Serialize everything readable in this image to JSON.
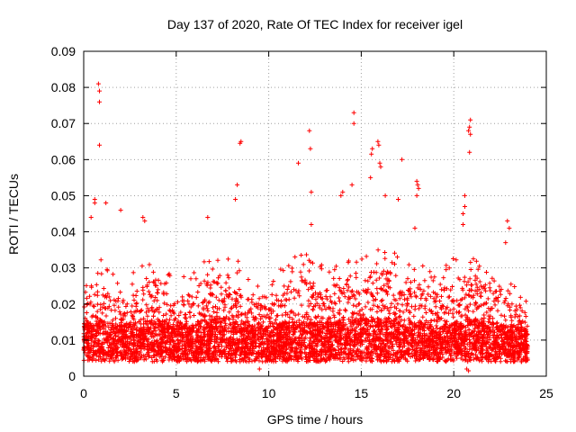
{
  "chart_data": {
    "type": "scatter",
    "title": "Day 137 of 2020, Rate Of TEC Index for receiver igel",
    "xlabel": "GPS time / hours",
    "ylabel": "ROTI / TECUs",
    "xlim": [
      0,
      25
    ],
    "ylim": [
      0,
      0.09
    ],
    "xticks": [
      0,
      5,
      10,
      15,
      20,
      25
    ],
    "xtick_labels": [
      "0",
      "5",
      "10",
      "15",
      "20",
      "25"
    ],
    "yticks": [
      0,
      0.01,
      0.02,
      0.03,
      0.04,
      0.05,
      0.06,
      0.07,
      0.08,
      0.09
    ],
    "ytick_labels": [
      "0",
      "0.01",
      "0.02",
      "0.03",
      "0.04",
      "0.05",
      "0.06",
      "0.07",
      "0.08",
      "0.09"
    ],
    "grid": true,
    "marker": "+",
    "color": "#ff0000",
    "data_time_range": [
      0,
      24
    ],
    "envelope": [
      {
        "t": 0.0,
        "base": 0.01,
        "upper": 0.024
      },
      {
        "t": 1.0,
        "base": 0.012,
        "upper": 0.033
      },
      {
        "t": 2.0,
        "base": 0.01,
        "upper": 0.026
      },
      {
        "t": 3.0,
        "base": 0.011,
        "upper": 0.03
      },
      {
        "t": 4.0,
        "base": 0.012,
        "upper": 0.034
      },
      {
        "t": 5.0,
        "base": 0.01,
        "upper": 0.025
      },
      {
        "t": 6.0,
        "base": 0.011,
        "upper": 0.032
      },
      {
        "t": 7.0,
        "base": 0.012,
        "upper": 0.033
      },
      {
        "t": 8.0,
        "base": 0.012,
        "upper": 0.036
      },
      {
        "t": 9.0,
        "base": 0.01,
        "upper": 0.026
      },
      {
        "t": 10.0,
        "base": 0.01,
        "upper": 0.025
      },
      {
        "t": 11.0,
        "base": 0.011,
        "upper": 0.033
      },
      {
        "t": 12.0,
        "base": 0.011,
        "upper": 0.034
      },
      {
        "t": 13.0,
        "base": 0.011,
        "upper": 0.031
      },
      {
        "t": 14.0,
        "base": 0.011,
        "upper": 0.034
      },
      {
        "t": 15.0,
        "base": 0.012,
        "upper": 0.033
      },
      {
        "t": 16.0,
        "base": 0.012,
        "upper": 0.038
      },
      {
        "t": 17.0,
        "base": 0.012,
        "upper": 0.035
      },
      {
        "t": 18.0,
        "base": 0.011,
        "upper": 0.034
      },
      {
        "t": 19.0,
        "base": 0.01,
        "upper": 0.028
      },
      {
        "t": 20.0,
        "base": 0.011,
        "upper": 0.033
      },
      {
        "t": 21.0,
        "base": 0.012,
        "upper": 0.036
      },
      {
        "t": 22.0,
        "base": 0.011,
        "upper": 0.031
      },
      {
        "t": 23.0,
        "base": 0.01,
        "upper": 0.026
      },
      {
        "t": 24.0,
        "base": 0.009,
        "upper": 0.022
      }
    ],
    "outliers": [
      {
        "x": 0.8,
        "y": 0.081
      },
      {
        "x": 0.85,
        "y": 0.079
      },
      {
        "x": 0.85,
        "y": 0.076
      },
      {
        "x": 0.85,
        "y": 0.064
      },
      {
        "x": 0.6,
        "y": 0.049
      },
      {
        "x": 0.6,
        "y": 0.048
      },
      {
        "x": 0.4,
        "y": 0.044
      },
      {
        "x": 1.2,
        "y": 0.048
      },
      {
        "x": 2.0,
        "y": 0.046
      },
      {
        "x": 3.2,
        "y": 0.044
      },
      {
        "x": 3.3,
        "y": 0.043
      },
      {
        "x": 8.5,
        "y": 0.065
      },
      {
        "x": 8.45,
        "y": 0.0645
      },
      {
        "x": 8.3,
        "y": 0.053
      },
      {
        "x": 8.2,
        "y": 0.049
      },
      {
        "x": 6.7,
        "y": 0.044
      },
      {
        "x": 11.6,
        "y": 0.059
      },
      {
        "x": 12.2,
        "y": 0.068
      },
      {
        "x": 12.25,
        "y": 0.063
      },
      {
        "x": 12.3,
        "y": 0.051
      },
      {
        "x": 12.3,
        "y": 0.042
      },
      {
        "x": 14.6,
        "y": 0.073
      },
      {
        "x": 14.6,
        "y": 0.07
      },
      {
        "x": 14.5,
        "y": 0.053
      },
      {
        "x": 14.0,
        "y": 0.051
      },
      {
        "x": 13.9,
        "y": 0.05
      },
      {
        "x": 15.6,
        "y": 0.063
      },
      {
        "x": 15.55,
        "y": 0.0615
      },
      {
        "x": 15.9,
        "y": 0.065
      },
      {
        "x": 15.95,
        "y": 0.064
      },
      {
        "x": 16.0,
        "y": 0.059
      },
      {
        "x": 16.05,
        "y": 0.058
      },
      {
        "x": 15.5,
        "y": 0.055
      },
      {
        "x": 16.3,
        "y": 0.05
      },
      {
        "x": 17.0,
        "y": 0.049
      },
      {
        "x": 17.2,
        "y": 0.06
      },
      {
        "x": 18.0,
        "y": 0.054
      },
      {
        "x": 18.05,
        "y": 0.053
      },
      {
        "x": 18.1,
        "y": 0.052
      },
      {
        "x": 18.0,
        "y": 0.05
      },
      {
        "x": 17.9,
        "y": 0.041
      },
      {
        "x": 20.9,
        "y": 0.071
      },
      {
        "x": 20.85,
        "y": 0.069
      },
      {
        "x": 20.8,
        "y": 0.068
      },
      {
        "x": 20.9,
        "y": 0.067
      },
      {
        "x": 20.85,
        "y": 0.062
      },
      {
        "x": 20.6,
        "y": 0.05
      },
      {
        "x": 20.6,
        "y": 0.047
      },
      {
        "x": 20.5,
        "y": 0.045
      },
      {
        "x": 20.5,
        "y": 0.042
      },
      {
        "x": 22.9,
        "y": 0.043
      },
      {
        "x": 23.0,
        "y": 0.041
      },
      {
        "x": 22.8,
        "y": 0.037
      },
      {
        "x": 20.7,
        "y": 0.002
      },
      {
        "x": 20.8,
        "y": 0.0015
      },
      {
        "x": 9.5,
        "y": 0.002
      }
    ]
  }
}
